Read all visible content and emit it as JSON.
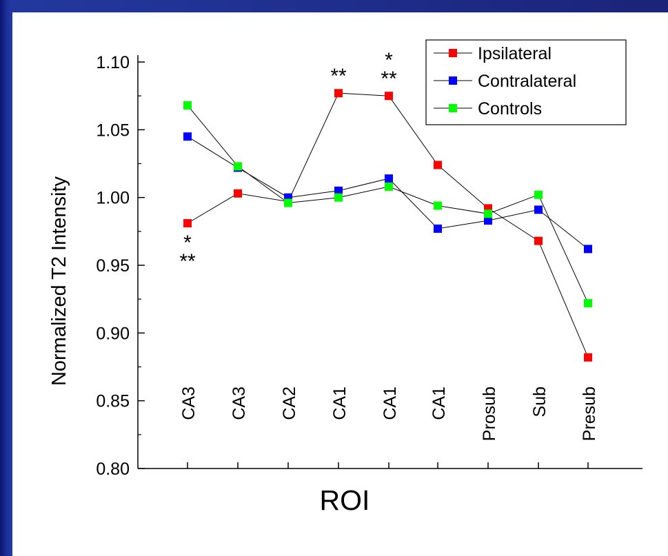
{
  "colors": {
    "background_blue": "#1c2f9c",
    "panel": "#ffffff",
    "ipsilateral": "#ff0000",
    "contralateral": "#0000ff",
    "controls": "#00ff00"
  },
  "chart_data": {
    "type": "line",
    "title": "",
    "xlabel": "ROI",
    "ylabel": "Normalized T2 Intensity",
    "ylim": [
      0.8,
      1.1
    ],
    "yticks": [
      "0.80",
      "0.85",
      "0.90",
      "0.95",
      "1.00",
      "1.05",
      "1.10"
    ],
    "categories": [
      "CA3",
      "CA3",
      "CA2",
      "CA1",
      "CA1",
      "CA1",
      "Prosub",
      "Sub",
      "Presub"
    ],
    "grid": false,
    "legend_position": "top-right",
    "series": [
      {
        "name": "Ipsilateral",
        "color": "#ff0000",
        "values": [
          0.981,
          1.003,
          0.997,
          1.077,
          1.075,
          1.024,
          0.992,
          0.968,
          0.882
        ]
      },
      {
        "name": "Contralateral",
        "color": "#0000ff",
        "values": [
          1.045,
          1.022,
          1.0,
          1.005,
          1.014,
          0.977,
          0.983,
          0.991,
          0.962
        ]
      },
      {
        "name": "Controls",
        "color": "#00ff00",
        "values": [
          1.068,
          1.023,
          0.996,
          1.0,
          1.008,
          0.994,
          0.988,
          1.002,
          0.922
        ]
      }
    ],
    "annotations": [
      {
        "category_index": 0,
        "value": 0.981,
        "text": "*",
        "placement": "below",
        "line": 0
      },
      {
        "category_index": 0,
        "value": 0.981,
        "text": "**",
        "placement": "below",
        "line": 1
      },
      {
        "category_index": 3,
        "value": 1.077,
        "text": "**",
        "placement": "above",
        "line": 0
      },
      {
        "category_index": 4,
        "value": 1.075,
        "text": "**",
        "placement": "above",
        "line": 0
      },
      {
        "category_index": 4,
        "value": 1.075,
        "text": "*",
        "placement": "above",
        "line": 1
      }
    ]
  }
}
